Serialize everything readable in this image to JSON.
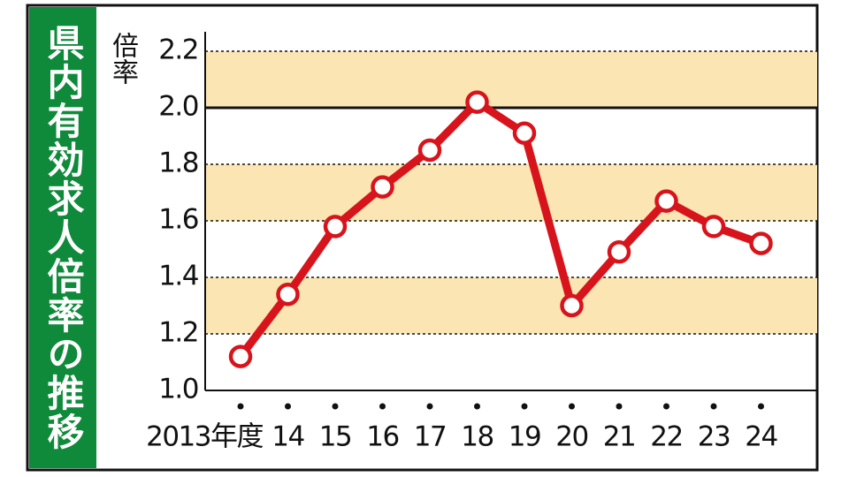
{
  "chart_data": {
    "type": "line",
    "title": "県内有効求人倍率の推移",
    "y_label": "倍率",
    "categories": [
      "2013年度",
      "14",
      "15",
      "16",
      "17",
      "18",
      "19",
      "20",
      "21",
      "22",
      "23",
      "24"
    ],
    "series": [
      {
        "color": "#d7141c",
        "values": [
          1.12,
          1.34,
          1.58,
          1.72,
          1.85,
          2.02,
          1.91,
          1.3,
          1.49,
          1.67,
          1.58,
          1.52
        ]
      }
    ],
    "ylim": [
      1,
      2.2
    ],
    "yticks": [
      {
        "value": 1,
        "label": "1.0"
      },
      1.2,
      1.4,
      1.6,
      1.8,
      {
        "value": 2,
        "label": "2.0"
      },
      2.2
    ],
    "grid": true,
    "highlight_line": 2,
    "band_color": "#fbe5b2",
    "title_color": "#0f8a3a"
  }
}
